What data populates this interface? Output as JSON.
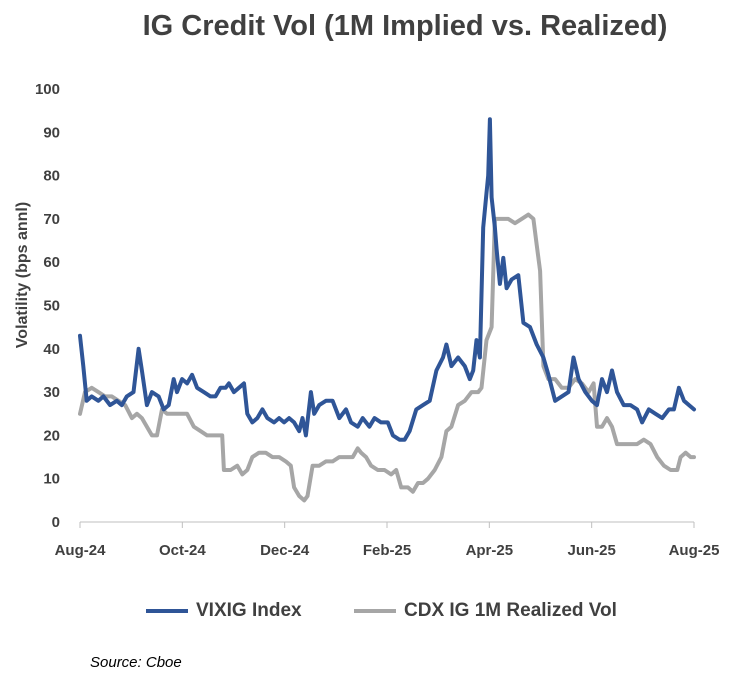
{
  "chart_data": {
    "type": "line",
    "title": "IG Credit Vol (1M Implied vs. Realized)",
    "ylabel": "Volatility (bps annl)",
    "xlabel": "",
    "ylim": [
      0,
      100
    ],
    "yticks": [
      0,
      10,
      20,
      30,
      40,
      50,
      60,
      70,
      80,
      90,
      100
    ],
    "xticks": [
      "Aug-24",
      "Oct-24",
      "Dec-24",
      "Feb-25",
      "Apr-25",
      "Jun-25",
      "Aug-25"
    ],
    "grid": false,
    "legend_position": "bottom",
    "series": [
      {
        "name": "VIXIG Index",
        "color": "#2F5597",
        "points": [
          [
            "2024-08-01",
            43
          ],
          [
            "2024-08-03",
            36
          ],
          [
            "2024-08-05",
            28
          ],
          [
            "2024-08-08",
            29
          ],
          [
            "2024-08-12",
            28
          ],
          [
            "2024-08-15",
            29
          ],
          [
            "2024-08-19",
            27
          ],
          [
            "2024-08-23",
            28
          ],
          [
            "2024-08-26",
            27
          ],
          [
            "2024-08-29",
            29
          ],
          [
            "2024-09-02",
            30
          ],
          [
            "2024-09-05",
            40
          ],
          [
            "2024-09-07",
            35
          ],
          [
            "2024-09-10",
            27
          ],
          [
            "2024-09-13",
            30
          ],
          [
            "2024-09-17",
            29
          ],
          [
            "2024-09-20",
            26
          ],
          [
            "2024-09-23",
            27
          ],
          [
            "2024-09-26",
            33
          ],
          [
            "2024-09-28",
            30
          ],
          [
            "2024-10-01",
            33
          ],
          [
            "2024-10-04",
            32
          ],
          [
            "2024-10-07",
            34
          ],
          [
            "2024-10-10",
            31
          ],
          [
            "2024-10-14",
            30
          ],
          [
            "2024-10-18",
            29
          ],
          [
            "2024-10-21",
            29
          ],
          [
            "2024-10-24",
            31
          ],
          [
            "2024-10-27",
            31
          ],
          [
            "2024-10-29",
            32
          ],
          [
            "2024-11-01",
            30
          ],
          [
            "2024-11-04",
            31
          ],
          [
            "2024-11-07",
            32
          ],
          [
            "2024-11-09",
            25
          ],
          [
            "2024-11-12",
            23
          ],
          [
            "2024-11-15",
            24
          ],
          [
            "2024-11-18",
            26
          ],
          [
            "2024-11-21",
            24
          ],
          [
            "2024-11-25",
            23
          ],
          [
            "2024-11-28",
            24
          ],
          [
            "2024-12-01",
            23
          ],
          [
            "2024-12-04",
            24
          ],
          [
            "2024-12-07",
            23
          ],
          [
            "2024-12-10",
            21
          ],
          [
            "2024-12-12",
            24
          ],
          [
            "2024-12-14",
            20
          ],
          [
            "2024-12-17",
            30
          ],
          [
            "2024-12-19",
            25
          ],
          [
            "2024-12-22",
            27
          ],
          [
            "2024-12-26",
            28
          ],
          [
            "2024-12-30",
            28
          ],
          [
            "2025-01-03",
            24
          ],
          [
            "2025-01-07",
            26
          ],
          [
            "2025-01-10",
            23
          ],
          [
            "2025-01-14",
            22
          ],
          [
            "2025-01-17",
            24
          ],
          [
            "2025-01-21",
            22
          ],
          [
            "2025-01-24",
            24
          ],
          [
            "2025-01-28",
            23
          ],
          [
            "2025-02-01",
            23
          ],
          [
            "2025-02-04",
            20
          ],
          [
            "2025-02-08",
            19
          ],
          [
            "2025-02-11",
            19
          ],
          [
            "2025-02-14",
            21
          ],
          [
            "2025-02-18",
            26
          ],
          [
            "2025-02-22",
            27
          ],
          [
            "2025-02-26",
            28
          ],
          [
            "2025-03-02",
            35
          ],
          [
            "2025-03-06",
            38
          ],
          [
            "2025-03-08",
            41
          ],
          [
            "2025-03-11",
            36
          ],
          [
            "2025-03-15",
            38
          ],
          [
            "2025-03-19",
            36
          ],
          [
            "2025-03-22",
            33
          ],
          [
            "2025-03-24",
            35
          ],
          [
            "2025-03-26",
            42
          ],
          [
            "2025-03-28",
            38
          ],
          [
            "2025-03-30",
            68
          ],
          [
            "2025-04-01",
            76
          ],
          [
            "2025-04-02",
            80
          ],
          [
            "2025-04-03",
            93
          ],
          [
            "2025-04-04",
            75
          ],
          [
            "2025-04-06",
            68
          ],
          [
            "2025-04-07",
            63
          ],
          [
            "2025-04-09",
            55
          ],
          [
            "2025-04-11",
            61
          ],
          [
            "2025-04-13",
            54
          ],
          [
            "2025-04-16",
            56
          ],
          [
            "2025-04-20",
            57
          ],
          [
            "2025-04-23",
            46
          ],
          [
            "2025-04-27",
            45
          ],
          [
            "2025-05-01",
            41
          ],
          [
            "2025-05-05",
            38
          ],
          [
            "2025-05-08",
            34
          ],
          [
            "2025-05-12",
            28
          ],
          [
            "2025-05-16",
            29
          ],
          [
            "2025-05-20",
            30
          ],
          [
            "2025-05-23",
            38
          ],
          [
            "2025-05-26",
            33
          ],
          [
            "2025-05-30",
            30
          ],
          [
            "2025-06-03",
            28
          ],
          [
            "2025-06-06",
            27
          ],
          [
            "2025-06-09",
            33
          ],
          [
            "2025-06-12",
            30
          ],
          [
            "2025-06-15",
            35
          ],
          [
            "2025-06-18",
            30
          ],
          [
            "2025-06-22",
            27
          ],
          [
            "2025-06-26",
            27
          ],
          [
            "2025-06-30",
            26
          ],
          [
            "2025-07-03",
            23
          ],
          [
            "2025-07-07",
            26
          ],
          [
            "2025-07-11",
            25
          ],
          [
            "2025-07-15",
            24
          ],
          [
            "2025-07-19",
            26
          ],
          [
            "2025-07-22",
            26
          ],
          [
            "2025-07-25",
            31
          ],
          [
            "2025-07-28",
            28
          ],
          [
            "2025-07-31",
            27
          ],
          [
            "2025-08-03",
            26
          ]
        ]
      },
      {
        "name": "CDX IG 1M Realized Vol",
        "color": "#A6A6A6",
        "points": [
          [
            "2024-08-01",
            25
          ],
          [
            "2024-08-04",
            30
          ],
          [
            "2024-08-08",
            31
          ],
          [
            "2024-08-12",
            30
          ],
          [
            "2024-08-16",
            29
          ],
          [
            "2024-08-20",
            29
          ],
          [
            "2024-08-24",
            28
          ],
          [
            "2024-08-28",
            27
          ],
          [
            "2024-09-01",
            24
          ],
          [
            "2024-09-04",
            25
          ],
          [
            "2024-09-07",
            24
          ],
          [
            "2024-09-10",
            22
          ],
          [
            "2024-09-13",
            20
          ],
          [
            "2024-09-16",
            20
          ],
          [
            "2024-09-19",
            26
          ],
          [
            "2024-09-22",
            25
          ],
          [
            "2024-09-26",
            25
          ],
          [
            "2024-09-30",
            25
          ],
          [
            "2024-10-04",
            25
          ],
          [
            "2024-10-08",
            22
          ],
          [
            "2024-10-12",
            21
          ],
          [
            "2024-10-16",
            20
          ],
          [
            "2024-10-22",
            20
          ],
          [
            "2024-10-25",
            20
          ],
          [
            "2024-10-26",
            12
          ],
          [
            "2024-10-30",
            12
          ],
          [
            "2024-11-03",
            13
          ],
          [
            "2024-11-06",
            11
          ],
          [
            "2024-11-09",
            12
          ],
          [
            "2024-11-12",
            15
          ],
          [
            "2024-11-16",
            16
          ],
          [
            "2024-11-20",
            16
          ],
          [
            "2024-11-24",
            15
          ],
          [
            "2024-11-28",
            15
          ],
          [
            "2024-12-02",
            14
          ],
          [
            "2024-12-05",
            13
          ],
          [
            "2024-12-07",
            8
          ],
          [
            "2024-12-10",
            6
          ],
          [
            "2024-12-13",
            5
          ],
          [
            "2024-12-15",
            6
          ],
          [
            "2024-12-18",
            13
          ],
          [
            "2024-12-22",
            13
          ],
          [
            "2024-12-26",
            14
          ],
          [
            "2024-12-30",
            14
          ],
          [
            "2025-01-03",
            15
          ],
          [
            "2025-01-07",
            15
          ],
          [
            "2025-01-11",
            15
          ],
          [
            "2025-01-14",
            17
          ],
          [
            "2025-01-16",
            16
          ],
          [
            "2025-01-19",
            15
          ],
          [
            "2025-01-22",
            13
          ],
          [
            "2025-01-26",
            12
          ],
          [
            "2025-01-30",
            12
          ],
          [
            "2025-02-03",
            11
          ],
          [
            "2025-02-06",
            12
          ],
          [
            "2025-02-09",
            8
          ],
          [
            "2025-02-13",
            8
          ],
          [
            "2025-02-16",
            7
          ],
          [
            "2025-02-19",
            9
          ],
          [
            "2025-02-22",
            9
          ],
          [
            "2025-02-25",
            10
          ],
          [
            "2025-03-01",
            12
          ],
          [
            "2025-03-05",
            15
          ],
          [
            "2025-03-08",
            21
          ],
          [
            "2025-03-11",
            22
          ],
          [
            "2025-03-15",
            27
          ],
          [
            "2025-03-19",
            28
          ],
          [
            "2025-03-23",
            30
          ],
          [
            "2025-03-27",
            30
          ],
          [
            "2025-03-29",
            31
          ],
          [
            "2025-04-01",
            42
          ],
          [
            "2025-04-04",
            45
          ],
          [
            "2025-04-06",
            70
          ],
          [
            "2025-04-10",
            70
          ],
          [
            "2025-04-14",
            70
          ],
          [
            "2025-04-18",
            69
          ],
          [
            "2025-04-22",
            70
          ],
          [
            "2025-04-26",
            71
          ],
          [
            "2025-04-29",
            70
          ],
          [
            "2025-05-01",
            64
          ],
          [
            "2025-05-03",
            58
          ],
          [
            "2025-05-05",
            36
          ],
          [
            "2025-05-08",
            33
          ],
          [
            "2025-05-12",
            33
          ],
          [
            "2025-05-16",
            31
          ],
          [
            "2025-05-20",
            31
          ],
          [
            "2025-05-24",
            33
          ],
          [
            "2025-05-28",
            32
          ],
          [
            "2025-06-01",
            30
          ],
          [
            "2025-06-04",
            32
          ],
          [
            "2025-06-06",
            22
          ],
          [
            "2025-06-09",
            22
          ],
          [
            "2025-06-12",
            24
          ],
          [
            "2025-06-15",
            22
          ],
          [
            "2025-06-18",
            18
          ],
          [
            "2025-06-22",
            18
          ],
          [
            "2025-06-26",
            18
          ],
          [
            "2025-06-30",
            18
          ],
          [
            "2025-07-04",
            19
          ],
          [
            "2025-07-08",
            18
          ],
          [
            "2025-07-12",
            15
          ],
          [
            "2025-07-16",
            13
          ],
          [
            "2025-07-20",
            12
          ],
          [
            "2025-07-24",
            12
          ],
          [
            "2025-07-26",
            15
          ],
          [
            "2025-07-29",
            16
          ],
          [
            "2025-08-01",
            15
          ],
          [
            "2025-08-03",
            15
          ]
        ]
      }
    ]
  },
  "source": "Source: Cboe"
}
